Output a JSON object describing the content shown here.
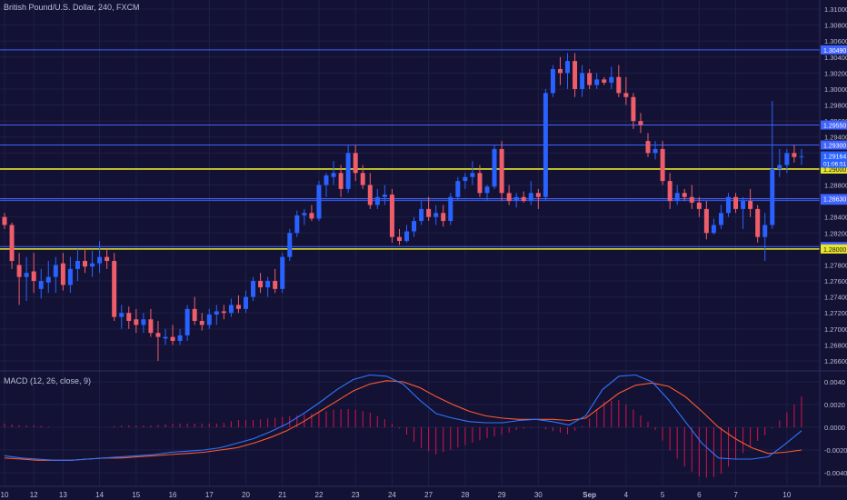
{
  "header": {
    "title": "British Pound/U.S. Dollar, 240, FXCM"
  },
  "indicator": {
    "label": "MACD (12, 26, close, 9)"
  },
  "colors": {
    "background": "#131235",
    "grid": "#1e1f47",
    "bull": "#2962ff",
    "bear": "#ef5d6b",
    "hline_blue": "#3f63ff",
    "hline_yellow": "#e8e82a",
    "macd_line": "#2d76ff",
    "signal_line": "#ff5a2e",
    "hist": "#d1144a",
    "axis_text": "#b8bfd6"
  },
  "chart_data": [
    {
      "type": "candlestick",
      "symbol": "British Pound/U.S. Dollar",
      "interval": "240",
      "exchange": "FXCM",
      "y_ticks": [
        "1.31000",
        "1.30800",
        "1.30600",
        "1.30400",
        "1.30200",
        "1.30000",
        "1.29800",
        "1.29600",
        "1.29400",
        "1.29200",
        "1.29000",
        "1.28800",
        "1.28600",
        "1.28400",
        "1.28200",
        "1.28000",
        "1.27800",
        "1.27600",
        "1.27400",
        "1.27200",
        "1.27000",
        "1.26800",
        "1.26600"
      ],
      "x_ticks": [
        "10",
        "12",
        "13",
        "14",
        "15",
        "16",
        "17",
        "20",
        "21",
        "22",
        "23",
        "24",
        "27",
        "28",
        "29",
        "30",
        "Sep",
        "4",
        "5",
        "6",
        "7",
        "10"
      ],
      "horizontal_levels": [
        {
          "price": 1.3049,
          "label": "1.30490",
          "color": "blue"
        },
        {
          "price": 1.2955,
          "label": "1.29550",
          "color": "blue"
        },
        {
          "price": 1.293,
          "label": "1.29300",
          "color": "blue"
        },
        {
          "price": 1.29,
          "label": "1.29000",
          "color": "yellow"
        },
        {
          "price": 1.2861,
          "label": "1.28610",
          "color": "blue"
        },
        {
          "price": 1.2863,
          "label": "1.28630",
          "color": "blue"
        },
        {
          "price": 1.2803,
          "label": "1.28030",
          "color": "blue"
        },
        {
          "price": 1.28,
          "label": "1.28000",
          "color": "yellow"
        }
      ],
      "current_price": {
        "label": "1.29164",
        "price": 1.29164,
        "countdown": "01:06:51"
      },
      "candles": [
        [
          1.284,
          1.2845,
          1.2825,
          1.283
        ],
        [
          1.283,
          1.2833,
          1.2775,
          1.2785
        ],
        [
          1.278,
          1.2795,
          1.273,
          1.2765
        ],
        [
          1.2765,
          1.279,
          1.2735,
          1.277
        ],
        [
          1.2772,
          1.2795,
          1.2745,
          1.276
        ],
        [
          1.275,
          1.2775,
          1.2738,
          1.276
        ],
        [
          1.2758,
          1.2785,
          1.2745,
          1.2765
        ],
        [
          1.2765,
          1.279,
          1.2745,
          1.278
        ],
        [
          1.2782,
          1.2795,
          1.2748,
          1.2755
        ],
        [
          1.2755,
          1.279,
          1.2745,
          1.2775
        ],
        [
          1.2775,
          1.28,
          1.276,
          1.2785
        ],
        [
          1.2785,
          1.28,
          1.277,
          1.2778
        ],
        [
          1.2778,
          1.2798,
          1.2765,
          1.2782
        ],
        [
          1.2782,
          1.281,
          1.277,
          1.279
        ],
        [
          1.279,
          1.28,
          1.2775,
          1.2785
        ],
        [
          1.2785,
          1.2795,
          1.271,
          1.2715
        ],
        [
          1.2715,
          1.273,
          1.27,
          1.272
        ],
        [
          1.272,
          1.2728,
          1.27,
          1.271
        ],
        [
          1.2712,
          1.2725,
          1.2695,
          1.2705
        ],
        [
          1.2705,
          1.272,
          1.2695,
          1.2712
        ],
        [
          1.2712,
          1.2725,
          1.269,
          1.2695
        ],
        [
          1.2695,
          1.271,
          1.266,
          1.269
        ],
        [
          1.2688,
          1.27,
          1.268,
          1.269
        ],
        [
          1.269,
          1.2705,
          1.268,
          1.2685
        ],
        [
          1.2685,
          1.27,
          1.268,
          1.2692
        ],
        [
          1.2692,
          1.273,
          1.2685,
          1.2725
        ],
        [
          1.2725,
          1.274,
          1.2705,
          1.271
        ],
        [
          1.271,
          1.272,
          1.2698,
          1.2705
        ],
        [
          1.2705,
          1.2725,
          1.27,
          1.2718
        ],
        [
          1.2718,
          1.273,
          1.2705,
          1.2722
        ],
        [
          1.2722,
          1.273,
          1.2712,
          1.272
        ],
        [
          1.272,
          1.2738,
          1.2715,
          1.273
        ],
        [
          1.273,
          1.2742,
          1.272,
          1.2725
        ],
        [
          1.2725,
          1.2748,
          1.272,
          1.274
        ],
        [
          1.274,
          1.2765,
          1.2735,
          1.276
        ],
        [
          1.276,
          1.277,
          1.2745,
          1.2752
        ],
        [
          1.2752,
          1.2765,
          1.274,
          1.276
        ],
        [
          1.276,
          1.2775,
          1.2745,
          1.275
        ],
        [
          1.275,
          1.2795,
          1.2745,
          1.279
        ],
        [
          1.279,
          1.2825,
          1.2785,
          1.282
        ],
        [
          1.282,
          1.2848,
          1.2815,
          1.2842
        ],
        [
          1.2842,
          1.285,
          1.283,
          1.2845
        ],
        [
          1.2845,
          1.2855,
          1.2835,
          1.2838
        ],
        [
          1.2838,
          1.2885,
          1.2835,
          1.288
        ],
        [
          1.288,
          1.2895,
          1.2865,
          1.2892
        ],
        [
          1.289,
          1.291,
          1.288,
          1.2895
        ],
        [
          1.2895,
          1.2905,
          1.2865,
          1.2875
        ],
        [
          1.2875,
          1.293,
          1.287,
          1.292
        ],
        [
          1.292,
          1.293,
          1.2885,
          1.2895
        ],
        [
          1.2895,
          1.2905,
          1.2875,
          1.288
        ],
        [
          1.288,
          1.2895,
          1.285,
          1.2855
        ],
        [
          1.2855,
          1.2875,
          1.285,
          1.2865
        ],
        [
          1.2865,
          1.288,
          1.2855,
          1.2868
        ],
        [
          1.2868,
          1.2875,
          1.2808,
          1.2815
        ],
        [
          1.2815,
          1.2825,
          1.2805,
          1.281
        ],
        [
          1.281,
          1.283,
          1.2808,
          1.2822
        ],
        [
          1.2822,
          1.284,
          1.2815,
          1.2835
        ],
        [
          1.2835,
          1.286,
          1.283,
          1.285
        ],
        [
          1.285,
          1.2865,
          1.2835,
          1.284
        ],
        [
          1.284,
          1.2855,
          1.283,
          1.2845
        ],
        [
          1.2845,
          1.2855,
          1.2828,
          1.2835
        ],
        [
          1.2835,
          1.287,
          1.283,
          1.2865
        ],
        [
          1.2865,
          1.289,
          1.286,
          1.2885
        ],
        [
          1.2885,
          1.2895,
          1.2875,
          1.289
        ],
        [
          1.289,
          1.291,
          1.288,
          1.2895
        ],
        [
          1.2895,
          1.2905,
          1.2865,
          1.287
        ],
        [
          1.287,
          1.288,
          1.286,
          1.2878
        ],
        [
          1.2878,
          1.293,
          1.2875,
          1.2925
        ],
        [
          1.2925,
          1.2935,
          1.286,
          1.287
        ],
        [
          1.287,
          1.288,
          1.2855,
          1.286
        ],
        [
          1.286,
          1.287,
          1.2852,
          1.2865
        ],
        [
          1.2865,
          1.2872,
          1.2858,
          1.286
        ],
        [
          1.286,
          1.2885,
          1.2855,
          1.287
        ],
        [
          1.287,
          1.2875,
          1.285,
          1.2865
        ],
        [
          1.2865,
          1.3,
          1.286,
          1.2995
        ],
        [
          1.2995,
          1.303,
          1.299,
          1.3025
        ],
        [
          1.3025,
          1.304,
          1.3005,
          1.302
        ],
        [
          1.302,
          1.3045,
          1.3,
          1.3035
        ],
        [
          1.3035,
          1.3045,
          1.299,
          1.3
        ],
        [
          1.3,
          1.303,
          1.299,
          1.302
        ],
        [
          1.302,
          1.3025,
          1.3,
          1.3005
        ],
        [
          1.3005,
          1.302,
          1.3,
          1.3012
        ],
        [
          1.3012,
          1.3015,
          1.3005,
          1.3008
        ],
        [
          1.3008,
          1.3028,
          1.3,
          1.3015
        ],
        [
          1.3015,
          1.303,
          1.299,
          1.2995
        ],
        [
          1.2995,
          1.3015,
          1.298,
          1.299
        ],
        [
          1.299,
          1.2995,
          1.295,
          1.296
        ],
        [
          1.296,
          1.297,
          1.2945,
          1.2955
        ],
        [
          1.2935,
          1.2945,
          1.2915,
          1.292
        ],
        [
          1.292,
          1.2935,
          1.2912,
          1.2925
        ],
        [
          1.2925,
          1.2935,
          1.288,
          1.2885
        ],
        [
          1.2885,
          1.2895,
          1.285,
          1.286
        ],
        [
          1.286,
          1.288,
          1.2855,
          1.287
        ],
        [
          1.287,
          1.2875,
          1.286,
          1.2865
        ],
        [
          1.2865,
          1.288,
          1.285,
          1.2858
        ],
        [
          1.2858,
          1.2865,
          1.284,
          1.285
        ],
        [
          1.285,
          1.286,
          1.2812,
          1.282
        ],
        [
          1.282,
          1.2838,
          1.2818,
          1.283
        ],
        [
          1.283,
          1.2855,
          1.2825,
          1.2845
        ],
        [
          1.2845,
          1.287,
          1.284,
          1.2865
        ],
        [
          1.2865,
          1.287,
          1.2845,
          1.285
        ],
        [
          1.285,
          1.2865,
          1.2825,
          1.286
        ],
        [
          1.286,
          1.2875,
          1.284,
          1.285
        ],
        [
          1.285,
          1.2855,
          1.2808,
          1.2815
        ],
        [
          1.2815,
          1.2845,
          1.2785,
          1.283
        ],
        [
          1.283,
          1.2985,
          1.2825,
          1.29
        ],
        [
          1.29,
          1.2925,
          1.289,
          1.2905
        ],
        [
          1.2905,
          1.2925,
          1.2895,
          1.292
        ],
        [
          1.292,
          1.293,
          1.2908,
          1.2915
        ],
        [
          1.2915,
          1.2925,
          1.2905,
          1.2916
        ]
      ],
      "x_label_slots": [
        0,
        4,
        8,
        13,
        18,
        23,
        28,
        33,
        38,
        43,
        48,
        53,
        58,
        63,
        68,
        73,
        80,
        85,
        90,
        95,
        100,
        107
      ]
    },
    {
      "type": "line",
      "name": "MACD (12, 26, close, 9)",
      "y_ticks": [
        "0.0040",
        "0.0020",
        "0.0000",
        "-0.0020",
        "-0.0040"
      ],
      "ylim": [
        -0.0048,
        0.0048
      ],
      "series": [
        {
          "name": "MACD",
          "values": [
            -0.0025,
            -0.0027,
            -0.0028,
            -0.0029,
            -0.0029,
            -0.0028,
            -0.0027,
            -0.0026,
            -0.0025,
            -0.0024,
            -0.0022,
            -0.0021,
            -0.002,
            -0.0018,
            -0.0014,
            -0.001,
            -0.0004,
            0.0003,
            0.0012,
            0.0022,
            0.0033,
            0.0042,
            0.0046,
            0.0045,
            0.0038,
            0.0024,
            0.0012,
            0.0008,
            0.0005,
            0.0004,
            0.0004,
            0.0006,
            0.0007,
            0.0005,
            0.0002,
            0.001,
            0.0033,
            0.0045,
            0.0046,
            0.004,
            0.0024,
            0.0005,
            -0.0014,
            -0.0027,
            -0.0028,
            -0.0028,
            -0.0026,
            -0.0015,
            -0.0003
          ]
        },
        {
          "name": "Signal",
          "values": [
            -0.0027,
            -0.0028,
            -0.0029,
            -0.0029,
            -0.0029,
            -0.0028,
            -0.0027,
            -0.0027,
            -0.0026,
            -0.0025,
            -0.0024,
            -0.0023,
            -0.0022,
            -0.002,
            -0.0018,
            -0.0014,
            -0.0009,
            -0.0003,
            0.0005,
            0.0014,
            0.0023,
            0.0032,
            0.0038,
            0.0041,
            0.004,
            0.0035,
            0.0027,
            0.002,
            0.0014,
            0.001,
            0.0008,
            0.0007,
            0.0007,
            0.0007,
            0.0006,
            0.0008,
            0.0019,
            0.003,
            0.0037,
            0.0039,
            0.0036,
            0.0027,
            0.0014,
            0.0,
            -0.001,
            -0.0018,
            -0.0023,
            -0.0022,
            -0.002
          ]
        }
      ]
    }
  ]
}
